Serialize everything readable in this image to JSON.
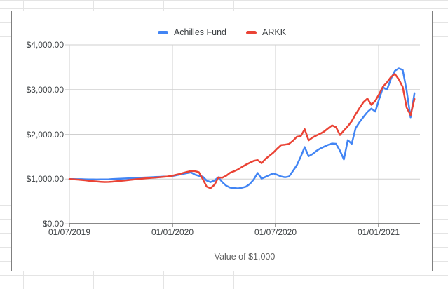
{
  "chart": {
    "legend": [
      {
        "label": "Achilles Fund",
        "color": "#4285f4"
      },
      {
        "label": "ARKK",
        "color": "#ea4335"
      }
    ],
    "y_axis": {
      "tick_labels": [
        "$0.00",
        "$1,000.00",
        "$2,000.00",
        "$3,000.00",
        "$4,000.00"
      ]
    },
    "x_axis": {
      "title": "Value of $1,000",
      "tick_labels": [
        "01/07/2019",
        "01/01/2020",
        "01/07/2020",
        "01/01/2021"
      ]
    }
  },
  "chart_data": {
    "type": "line",
    "title": "",
    "xlabel": "Value of $1,000",
    "ylabel": "",
    "ylim": [
      0,
      4000
    ],
    "ytick_interval": 1000,
    "grid": true,
    "legend_position": "top",
    "x_tick_labels": [
      "01/07/2019",
      "01/01/2020",
      "01/07/2020",
      "01/01/2021"
    ],
    "x": [
      "01/07/2019",
      "08/07/2019",
      "15/07/2019",
      "22/07/2019",
      "29/07/2019",
      "05/08/2019",
      "12/08/2019",
      "19/08/2019",
      "26/08/2019",
      "02/09/2019",
      "09/09/2019",
      "16/09/2019",
      "23/09/2019",
      "30/09/2019",
      "07/10/2019",
      "14/10/2019",
      "21/10/2019",
      "28/10/2019",
      "04/11/2019",
      "11/11/2019",
      "18/11/2019",
      "25/11/2019",
      "02/12/2019",
      "09/12/2019",
      "16/12/2019",
      "23/12/2019",
      "30/12/2019",
      "06/01/2020",
      "13/01/2020",
      "20/01/2020",
      "27/01/2020",
      "03/02/2020",
      "10/02/2020",
      "17/02/2020",
      "24/02/2020",
      "02/03/2020",
      "09/03/2020",
      "16/03/2020",
      "23/03/2020",
      "30/03/2020",
      "06/04/2020",
      "13/04/2020",
      "20/04/2020",
      "27/04/2020",
      "04/05/2020",
      "11/05/2020",
      "18/05/2020",
      "25/05/2020",
      "01/06/2020",
      "08/06/2020",
      "15/06/2020",
      "22/06/2020",
      "29/06/2020",
      "06/07/2020",
      "13/07/2020",
      "20/07/2020",
      "27/07/2020",
      "03/08/2020",
      "10/08/2020",
      "17/08/2020",
      "24/08/2020",
      "31/08/2020",
      "07/09/2020",
      "14/09/2020",
      "21/09/2020",
      "28/09/2020",
      "05/10/2020",
      "12/10/2020",
      "19/10/2020",
      "26/10/2020",
      "02/11/2020",
      "09/11/2020",
      "16/11/2020",
      "23/11/2020",
      "30/11/2020",
      "07/12/2020",
      "14/12/2020",
      "21/12/2020",
      "28/12/2020",
      "04/01/2021",
      "11/01/2021",
      "18/01/2021",
      "25/01/2021",
      "01/02/2021",
      "08/02/2021",
      "15/02/2021",
      "22/02/2021",
      "01/03/2021",
      "08/03/2021"
    ],
    "series": [
      {
        "name": "Achilles Fund",
        "color": "#4285f4",
        "values": [
          1000,
          1000,
          998,
          997,
          995,
          993,
          992,
          990,
          991,
          993,
          995,
          1000,
          1004,
          1008,
          1012,
          1016,
          1020,
          1025,
          1029,
          1033,
          1037,
          1042,
          1046,
          1050,
          1054,
          1058,
          1063,
          1080,
          1098,
          1115,
          1133,
          1148,
          1100,
          1072,
          1055,
          965,
          932,
          968,
          1040,
          930,
          850,
          808,
          798,
          790,
          805,
          828,
          890,
          990,
          1135,
          1008,
          1048,
          1088,
          1126,
          1095,
          1058,
          1040,
          1055,
          1180,
          1310,
          1500,
          1715,
          1510,
          1560,
          1630,
          1685,
          1725,
          1765,
          1795,
          1788,
          1635,
          1440,
          1870,
          1790,
          2140,
          2275,
          2390,
          2500,
          2575,
          2510,
          2790,
          3050,
          3000,
          3240,
          3420,
          3475,
          3440,
          2980,
          2380,
          2920
        ]
      },
      {
        "name": "ARKK",
        "color": "#ea4335",
        "values": [
          1000,
          995,
          988,
          980,
          972,
          962,
          953,
          945,
          938,
          933,
          935,
          941,
          950,
          958,
          967,
          977,
          986,
          996,
          1004,
          1012,
          1019,
          1027,
          1034,
          1041,
          1049,
          1058,
          1070,
          1090,
          1110,
          1135,
          1160,
          1180,
          1178,
          1155,
          1000,
          830,
          795,
          870,
          1035,
          1030,
          1075,
          1140,
          1175,
          1215,
          1270,
          1320,
          1365,
          1405,
          1425,
          1355,
          1450,
          1520,
          1590,
          1680,
          1760,
          1770,
          1785,
          1855,
          1945,
          1960,
          2115,
          1865,
          1930,
          1975,
          2015,
          2065,
          2135,
          2200,
          2160,
          1985,
          2085,
          2180,
          2295,
          2450,
          2590,
          2720,
          2800,
          2660,
          2750,
          2900,
          3070,
          3160,
          3280,
          3350,
          3230,
          3060,
          2600,
          2430,
          2790
        ]
      }
    ]
  }
}
